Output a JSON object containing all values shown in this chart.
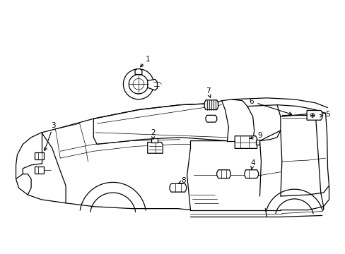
{
  "bg_color": "#ffffff",
  "line_color": "#000000",
  "figsize": [
    4.89,
    3.6
  ],
  "dpi": 100,
  "lw": 0.9,
  "tlw": 0.5
}
